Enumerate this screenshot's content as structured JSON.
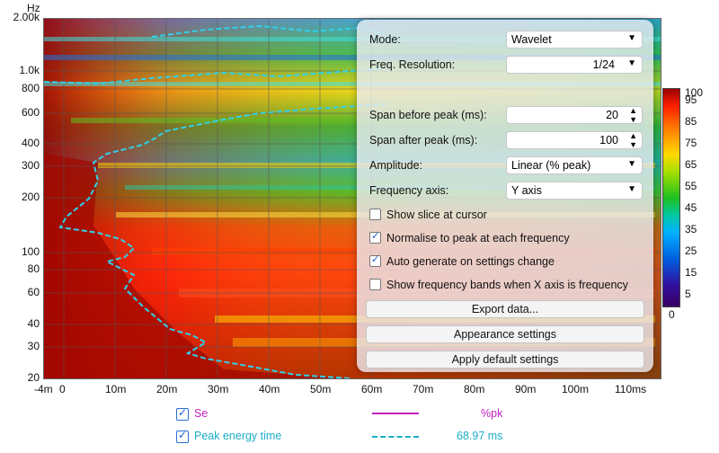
{
  "y_unit": "Hz",
  "y_ticks": [
    "2.00k",
    "1.0k",
    "800",
    "600",
    "400",
    "300",
    "200",
    "100",
    "80",
    "60",
    "40",
    "30",
    "20"
  ],
  "x_ticks": [
    "-4m",
    "0",
    "10m",
    "20m",
    "30m",
    "40m",
    "50m",
    "60m",
    "70m",
    "80m",
    "90m",
    "100m",
    "110ms"
  ],
  "colorbar": [
    "100",
    "95",
    "85",
    "75",
    "65",
    "55",
    "45",
    "35",
    "25",
    "15",
    "5",
    "0"
  ],
  "panel": {
    "mode_label": "Mode:",
    "mode_value": "Wavelet",
    "freq_res_label": "Freq. Resolution:",
    "freq_res_value": "1/24",
    "span_before_label": "Span before peak (ms):",
    "span_before_value": "20",
    "span_after_label": "Span after peak (ms):",
    "span_after_value": "100",
    "amplitude_label": "Amplitude:",
    "amplitude_value": "Linear (% peak)",
    "freq_axis_label": "Frequency axis:",
    "freq_axis_value": "Y axis",
    "show_slice": "Show slice at cursor",
    "normalise": "Normalise to peak at each frequency",
    "auto_generate": "Auto generate on settings change",
    "show_bands": "Show frequency bands when X axis is frequency",
    "export": "Export data...",
    "appearance": "Appearance settings",
    "apply_default": "Apply default settings"
  },
  "legend": {
    "se_name": "Se",
    "se_value": "%pk",
    "se_color": "#c020c0",
    "pet_name": "Peak energy time",
    "pet_value": "68.97 ms",
    "pet_color": "#1aaec8"
  }
}
